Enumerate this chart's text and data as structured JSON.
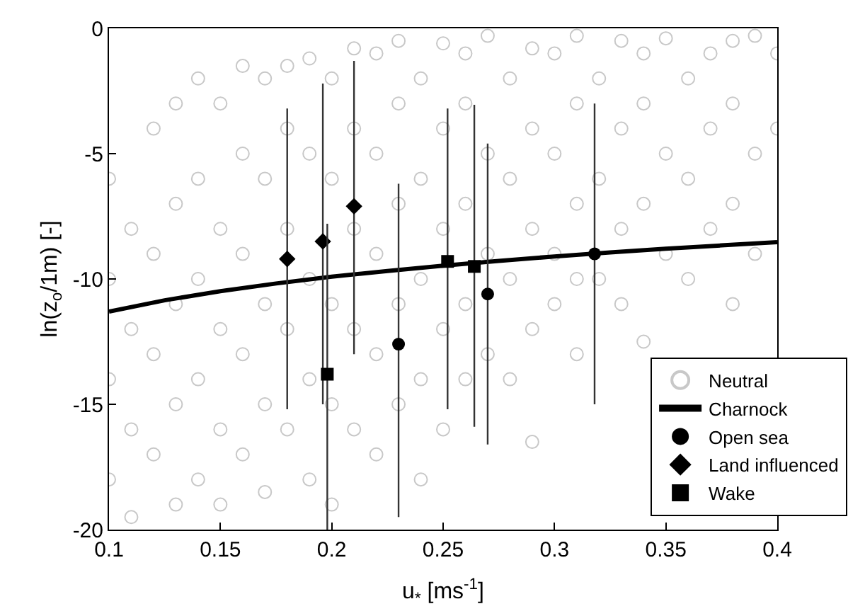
{
  "chart_data": {
    "type": "scatter",
    "xlabel": "u$_{*}$ [ms$^{-1}$]",
    "ylabel": "ln(z$_{o}$/1m) [-]",
    "xlim": [
      0.1,
      0.4
    ],
    "xticks": [
      0.1,
      0.15,
      0.2,
      0.25,
      0.3,
      0.35,
      0.4
    ],
    "ylim": [
      -20,
      0
    ],
    "yticks": [
      -20,
      -15,
      -10,
      -5,
      0
    ],
    "legend": "bottom right",
    "series": [
      {
        "name": "Neutral",
        "marker": "circle",
        "color": "#c8c8c8",
        "x": [
          0.1,
          0.1,
          0.1,
          0.1,
          0.11,
          0.11,
          0.11,
          0.11,
          0.12,
          0.12,
          0.12,
          0.12,
          0.13,
          0.13,
          0.13,
          0.13,
          0.13,
          0.14,
          0.14,
          0.14,
          0.14,
          0.14,
          0.15,
          0.15,
          0.15,
          0.15,
          0.15,
          0.16,
          0.16,
          0.16,
          0.16,
          0.16,
          0.17,
          0.17,
          0.17,
          0.17,
          0.17,
          0.18,
          0.18,
          0.18,
          0.18,
          0.18,
          0.19,
          0.19,
          0.19,
          0.19,
          0.19,
          0.2,
          0.2,
          0.2,
          0.2,
          0.2,
          0.21,
          0.21,
          0.21,
          0.21,
          0.21,
          0.22,
          0.22,
          0.22,
          0.22,
          0.22,
          0.23,
          0.23,
          0.23,
          0.23,
          0.23,
          0.24,
          0.24,
          0.24,
          0.24,
          0.24,
          0.25,
          0.25,
          0.25,
          0.25,
          0.25,
          0.26,
          0.26,
          0.26,
          0.26,
          0.26,
          0.27,
          0.27,
          0.27,
          0.27,
          0.28,
          0.28,
          0.28,
          0.28,
          0.29,
          0.29,
          0.29,
          0.29,
          0.29,
          0.3,
          0.3,
          0.3,
          0.3,
          0.31,
          0.31,
          0.31,
          0.31,
          0.31,
          0.32,
          0.32,
          0.32,
          0.33,
          0.33,
          0.33,
          0.33,
          0.34,
          0.34,
          0.34,
          0.34,
          0.35,
          0.35,
          0.35,
          0.36,
          0.36,
          0.36,
          0.37,
          0.37,
          0.37,
          0.38,
          0.38,
          0.38,
          0.38,
          0.39,
          0.39,
          0.39,
          0.4,
          0.4
        ],
        "values": [
          -6,
          -10,
          -14,
          -18,
          -8,
          -12,
          -16,
          -19.5,
          -4,
          -9,
          -13,
          -17,
          -3,
          -7,
          -11,
          -15,
          -19,
          -2,
          -6,
          -10,
          -14,
          -18,
          -3,
          -8,
          -12,
          -16,
          -19,
          -1.5,
          -5,
          -9,
          -13,
          -17,
          -2,
          -6,
          -11,
          -15,
          -18.5,
          -1.5,
          -4,
          -8,
          -12,
          -16,
          -1.2,
          -5,
          -10,
          -14,
          -18,
          -2,
          -6,
          -11,
          -15,
          -19,
          -0.8,
          -4,
          -8,
          -12,
          -16,
          -1,
          -5,
          -9,
          -13,
          -17,
          -0.5,
          -3,
          -7,
          -11,
          -15,
          -2,
          -6,
          -10,
          -14,
          -18,
          -0.6,
          -4,
          -8,
          -12,
          -16,
          -1,
          -3,
          -7,
          -11,
          -14,
          -0.3,
          -5,
          -9,
          -13,
          -2,
          -6,
          -10,
          -14,
          -0.8,
          -4,
          -8,
          -12,
          -16.5,
          -1,
          -5,
          -9,
          -11,
          -0.3,
          -3,
          -7,
          -10,
          -13,
          -2,
          -6,
          -10,
          -0.5,
          -4,
          -8,
          -11,
          -1,
          -3,
          -7,
          -12.5,
          -0.4,
          -5,
          -9,
          -2,
          -6,
          -10,
          -1,
          -4,
          -8,
          -0.5,
          -3,
          -7,
          -11,
          -0.3,
          -5,
          -9,
          -1,
          -4
        ]
      },
      {
        "name": "Charnock",
        "type": "line",
        "marker": "none",
        "line_style": "solid",
        "color": "#000000",
        "x": [
          0.1,
          0.125,
          0.15,
          0.175,
          0.2,
          0.225,
          0.25,
          0.275,
          0.3,
          0.325,
          0.35,
          0.375,
          0.4
        ],
        "values": [
          -11.3,
          -10.85,
          -10.49,
          -10.18,
          -9.91,
          -9.68,
          -9.47,
          -9.28,
          -9.1,
          -8.94,
          -8.79,
          -8.66,
          -8.53
        ]
      },
      {
        "name": "Open sea",
        "marker": "circle",
        "color": "#000000",
        "x": [
          0.23,
          0.27,
          0.318
        ],
        "values": [
          -12.6,
          -10.6,
          -9.0
        ],
        "errors": [
          [
            -19.5,
            -6.2
          ],
          [
            -16.6,
            -4.6
          ],
          [
            -15.0,
            -3.0
          ]
        ]
      },
      {
        "name": "Land influenced",
        "marker": "diamond",
        "color": "#000000",
        "x": [
          0.18,
          0.196,
          0.21
        ],
        "values": [
          -9.2,
          -8.5,
          -7.1
        ],
        "errors": [
          [
            -15.2,
            -3.2
          ],
          [
            -15.0,
            -2.2
          ],
          [
            -13.0,
            -1.3
          ]
        ]
      },
      {
        "name": "Wake",
        "marker": "square",
        "color": "#000000",
        "x": [
          0.198,
          0.252,
          0.264
        ],
        "values": [
          -13.8,
          -9.3,
          -9.5
        ],
        "errors": [
          [
            -20.0,
            -7.8
          ],
          [
            -15.2,
            -3.2
          ],
          [
            -15.9,
            -3.05
          ]
        ]
      }
    ]
  }
}
